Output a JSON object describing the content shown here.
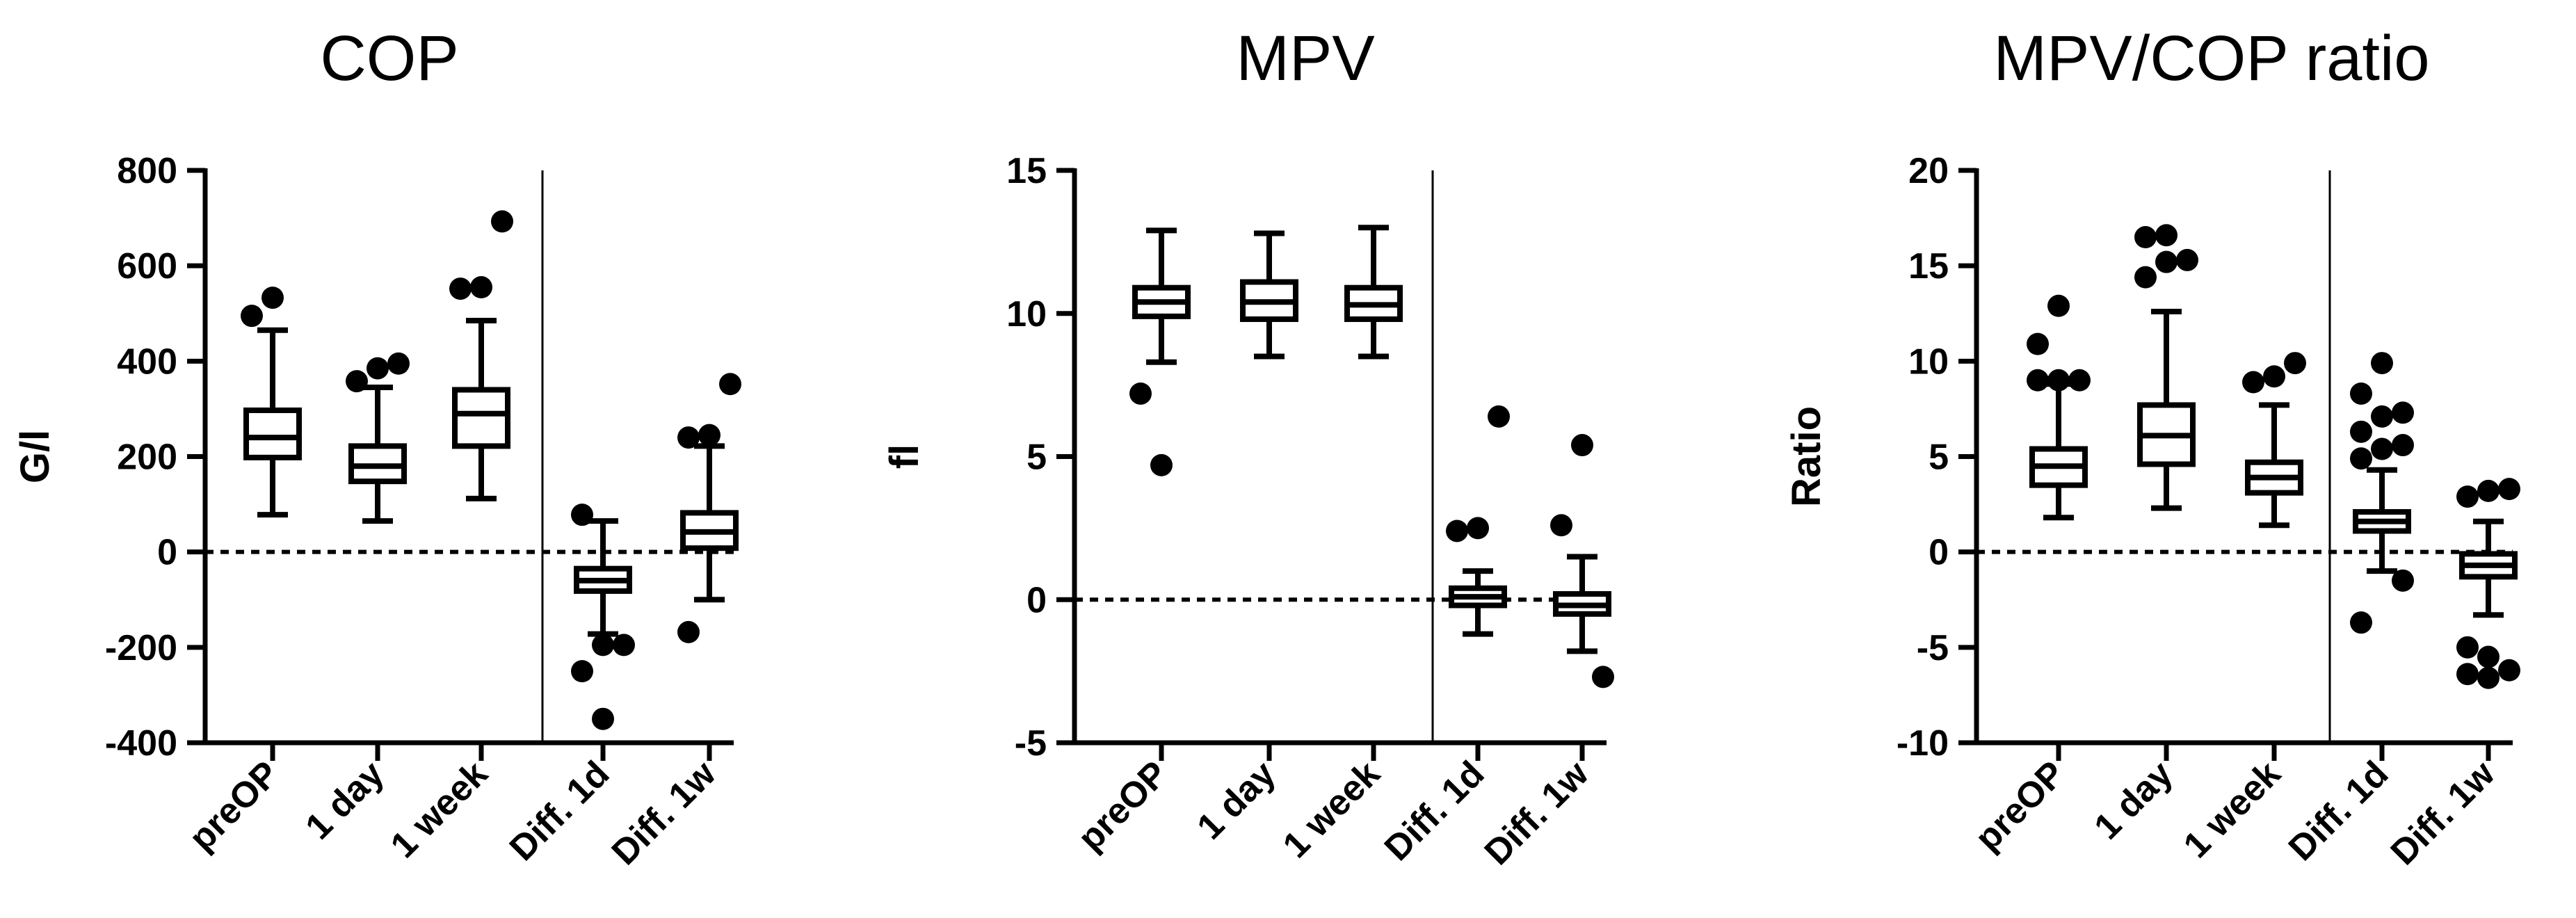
{
  "chart_data": [
    {
      "type": "box",
      "title": "COP",
      "ylabel": "G/l",
      "ylim": [
        -400,
        800
      ],
      "yticks": [
        -400,
        -200,
        0,
        200,
        400,
        600,
        800
      ],
      "reference_line": 0,
      "separator_after_category": 3,
      "categories": [
        "preOP",
        "1 day",
        "1 week",
        "Diff. 1d",
        "Diff. 1w"
      ],
      "boxes": [
        {
          "whisker_low": 78,
          "q1": 198,
          "median": 240,
          "q3": 297,
          "whisker_high": 465,
          "outliers": [
            495,
            533
          ]
        },
        {
          "whisker_low": 65,
          "q1": 148,
          "median": 180,
          "q3": 222,
          "whisker_high": 345,
          "outliers": [
            358,
            385,
            395
          ]
        },
        {
          "whisker_low": 112,
          "q1": 222,
          "median": 290,
          "q3": 340,
          "whisker_high": 485,
          "outliers": [
            552,
            555,
            693
          ]
        },
        {
          "whisker_low": -172,
          "q1": -82,
          "median": -60,
          "q3": -35,
          "whisker_high": 65,
          "outliers": [
            78,
            -195,
            -195,
            -250,
            -350
          ]
        },
        {
          "whisker_low": -100,
          "q1": 8,
          "median": 42,
          "q3": 82,
          "whisker_high": 222,
          "outliers": [
            240,
            245,
            352,
            -168
          ]
        }
      ]
    },
    {
      "type": "box",
      "title": "MPV",
      "ylabel": "fl",
      "ylim": [
        -5,
        15
      ],
      "yticks": [
        -5,
        0,
        5,
        10,
        15
      ],
      "reference_line": 0,
      "separator_after_category": 3,
      "categories": [
        "preOP",
        "1 day",
        "1 week",
        "Diff. 1d",
        "Diff. 1w"
      ],
      "boxes": [
        {
          "whisker_low": 8.3,
          "q1": 9.9,
          "median": 10.4,
          "q3": 10.9,
          "whisker_high": 12.9,
          "outliers": [
            7.2,
            4.7
          ]
        },
        {
          "whisker_low": 8.5,
          "q1": 9.8,
          "median": 10.4,
          "q3": 11.1,
          "whisker_high": 12.8,
          "outliers": []
        },
        {
          "whisker_low": 8.5,
          "q1": 9.8,
          "median": 10.3,
          "q3": 10.9,
          "whisker_high": 13.0,
          "outliers": []
        },
        {
          "whisker_low": -1.2,
          "q1": -0.2,
          "median": 0.1,
          "q3": 0.4,
          "whisker_high": 1.0,
          "outliers": [
            2.4,
            2.5,
            6.4
          ]
        },
        {
          "whisker_low": -1.8,
          "q1": -0.5,
          "median": -0.2,
          "q3": 0.2,
          "whisker_high": 1.5,
          "outliers": [
            2.6,
            5.4,
            -2.7
          ]
        }
      ]
    },
    {
      "type": "box",
      "title": "MPV/COP ratio",
      "ylabel": "Ratio",
      "ylim": [
        -10,
        20
      ],
      "yticks": [
        -10,
        -5,
        0,
        5,
        10,
        15,
        20
      ],
      "reference_line": 0,
      "separator_after_category": 3,
      "categories": [
        "preOP",
        "1 day",
        "1 week",
        "Diff. 1d",
        "Diff. 1w"
      ],
      "boxes": [
        {
          "whisker_low": 1.8,
          "q1": 3.5,
          "median": 4.5,
          "q3": 5.4,
          "whisker_high": 8.8,
          "outliers": [
            9.0,
            9.0,
            9.0,
            10.9,
            12.9
          ]
        },
        {
          "whisker_low": 2.3,
          "q1": 4.6,
          "median": 6.1,
          "q3": 7.7,
          "whisker_high": 12.6,
          "outliers": [
            14.4,
            15.2,
            15.3,
            16.5,
            16.6
          ]
        },
        {
          "whisker_low": 1.4,
          "q1": 3.1,
          "median": 3.9,
          "q3": 4.7,
          "whisker_high": 7.7,
          "outliers": [
            8.9,
            9.2,
            9.9
          ]
        },
        {
          "whisker_low": -1.0,
          "q1": 1.1,
          "median": 1.6,
          "q3": 2.1,
          "whisker_high": 4.3,
          "outliers": [
            4.9,
            5.4,
            5.6,
            6.3,
            7.1,
            7.3,
            8.3,
            9.9,
            -1.5,
            -3.7
          ]
        },
        {
          "whisker_low": -3.3,
          "q1": -1.3,
          "median": -0.7,
          "q3": -0.1,
          "whisker_high": 1.6,
          "outliers": [
            2.9,
            3.2,
            3.3,
            -5.0,
            -5.5,
            -6.2,
            -6.4,
            -6.6
          ]
        }
      ]
    }
  ]
}
